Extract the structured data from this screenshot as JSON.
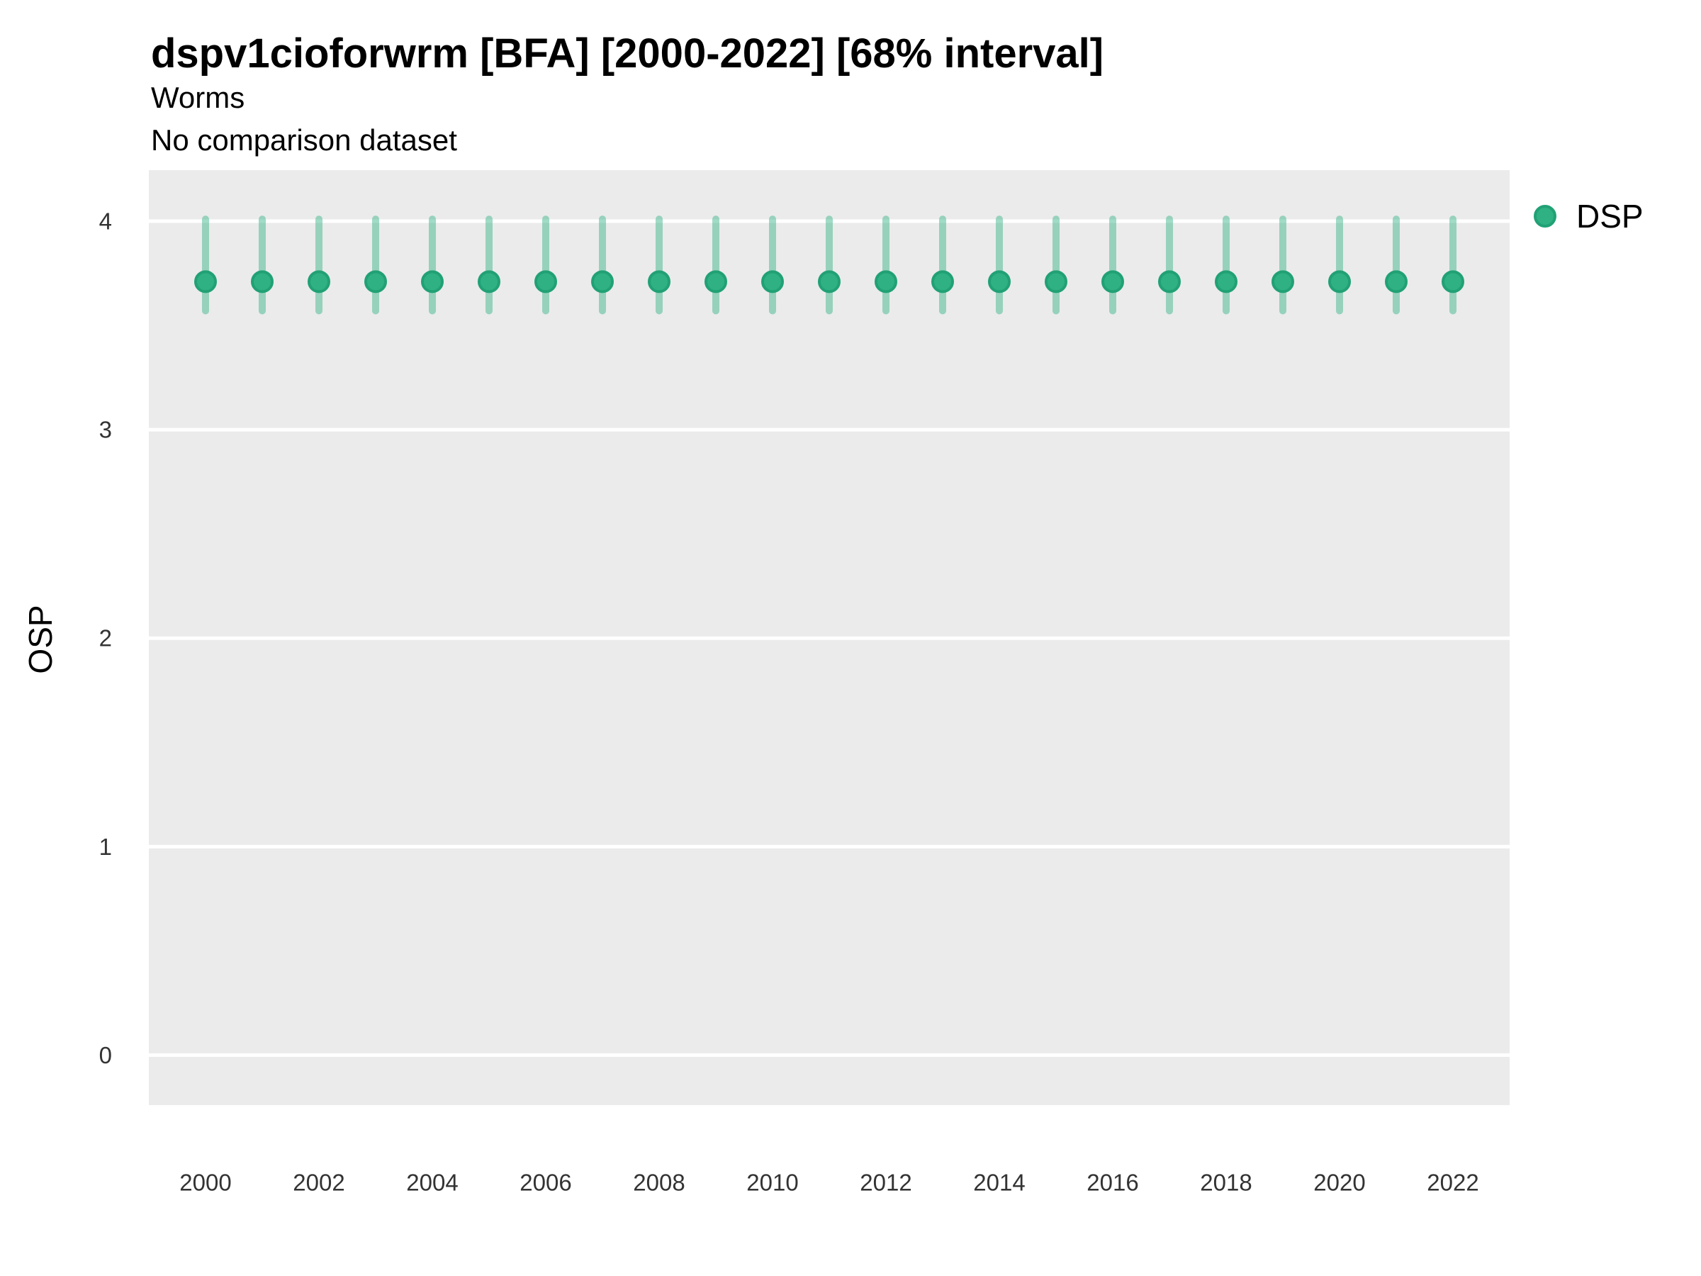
{
  "header": {
    "title": "dspv1cioforwrm [BFA] [2000-2022] [68% interval]",
    "subtitle": "Worms",
    "note": "No comparison dataset"
  },
  "legend": {
    "items": [
      {
        "label": "DSP",
        "fill": "#2fb183",
        "stroke": "#21a175"
      }
    ]
  },
  "axes": {
    "y_title": "OSP",
    "y_ticks": [
      0,
      1,
      2,
      3,
      4
    ],
    "x_tick_labels": [
      "2000",
      "2002",
      "2004",
      "2006",
      "2008",
      "2010",
      "2012",
      "2014",
      "2016",
      "2018",
      "2020",
      "2022"
    ]
  },
  "colors": {
    "panel_bg": "#ebebeb",
    "gridline": "#ffffff",
    "tick_label": "#333333",
    "point_fill": "#2fb183",
    "point_stroke": "#21a175",
    "interval_stroke": "#2fb183"
  },
  "chart_data": {
    "type": "scatter",
    "title": "dspv1cioforwrm [BFA] [2000-2022] [68% interval]",
    "subtitle": "Worms",
    "note": "No comparison dataset",
    "interval_label": "68% interval",
    "xlabel": "",
    "ylabel": "OSP",
    "xlim": [
      1999,
      2023
    ],
    "ylim": [
      -0.24,
      4.245
    ],
    "y_ticks": [
      0,
      1,
      2,
      3,
      4
    ],
    "x_ticks": [
      2000,
      2002,
      2004,
      2006,
      2008,
      2010,
      2012,
      2014,
      2016,
      2018,
      2020,
      2022
    ],
    "grid": "horizontal-major-only",
    "legend_position": "right-top",
    "x": [
      2000,
      2001,
      2002,
      2003,
      2004,
      2005,
      2006,
      2007,
      2008,
      2009,
      2010,
      2011,
      2012,
      2013,
      2014,
      2015,
      2016,
      2017,
      2018,
      2019,
      2020,
      2021,
      2022
    ],
    "series": [
      {
        "name": "DSP",
        "est": [
          3.71,
          3.71,
          3.71,
          3.71,
          3.71,
          3.71,
          3.71,
          3.71,
          3.71,
          3.71,
          3.71,
          3.71,
          3.71,
          3.71,
          3.71,
          3.71,
          3.71,
          3.71,
          3.71,
          3.71,
          3.71,
          3.71,
          3.71
        ],
        "lo": [
          3.57,
          3.57,
          3.57,
          3.57,
          3.57,
          3.57,
          3.57,
          3.57,
          3.57,
          3.57,
          3.57,
          3.57,
          3.57,
          3.57,
          3.57,
          3.57,
          3.57,
          3.57,
          3.57,
          3.57,
          3.57,
          3.57,
          3.57
        ],
        "hi": [
          4.01,
          4.01,
          4.01,
          4.01,
          4.01,
          4.01,
          4.01,
          4.01,
          4.01,
          4.01,
          4.01,
          4.01,
          4.01,
          4.01,
          4.01,
          4.01,
          4.01,
          4.01,
          4.01,
          4.01,
          4.01,
          4.01,
          4.01
        ]
      }
    ]
  }
}
